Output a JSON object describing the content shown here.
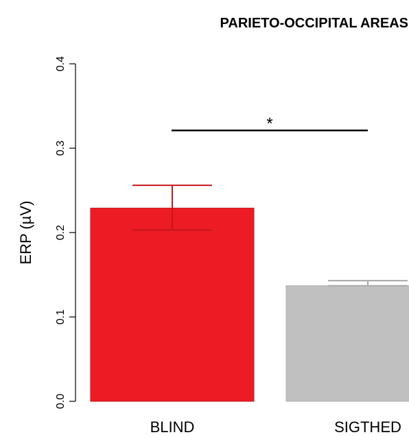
{
  "chart_data": {
    "type": "bar",
    "title": "PARIETO-OCCIPITAL AREAS",
    "ylabel": "ERP (µV)",
    "xlabel": "",
    "ylim": [
      0,
      0.4
    ],
    "yticks": [
      "0.0",
      "0.1",
      "0.2",
      "0.3",
      "0.4"
    ],
    "categories": [
      "BLIND",
      "SIGTHED"
    ],
    "values": [
      0.229,
      0.137
    ],
    "error_upper": [
      0.256,
      0.143
    ],
    "error_lower": [
      0.203,
      0.137
    ],
    "colors": [
      "#ed1c24",
      "#c0c0c0"
    ],
    "significance": {
      "label": "*",
      "between": [
        "BLIND",
        "SIGTHED"
      ],
      "y": 0.321
    },
    "grid": false,
    "legend": "none"
  }
}
